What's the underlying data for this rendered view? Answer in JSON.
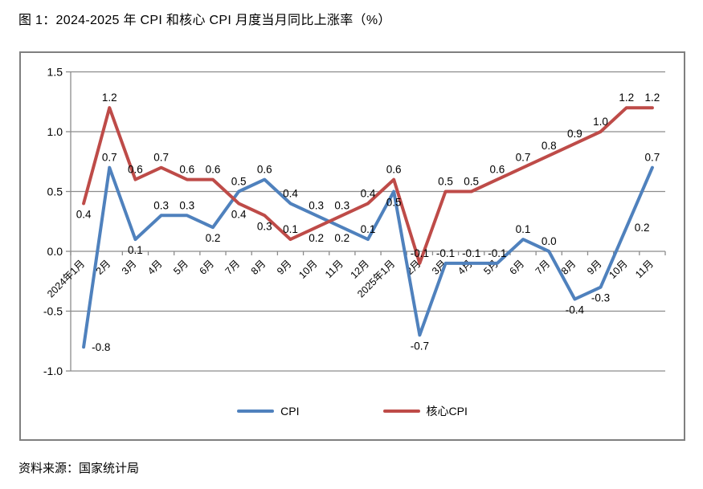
{
  "title": "图 1：2024-2025 年 CPI 和核心 CPI 月度当月同比上涨率（%）",
  "source": "资料来源：国家统计局",
  "legend": {
    "cpi": "CPI",
    "core_cpi": "核心CPI"
  },
  "chart_data": {
    "type": "line",
    "title": "图 1：2024-2025 年 CPI 和核心 CPI 月度当月同比上涨率（%）",
    "xlabel": "",
    "ylabel": "",
    "ylim": [
      -1.0,
      1.5
    ],
    "ytick_step": 0.5,
    "yticks": [
      "1.5",
      "1.0",
      "0.5",
      "0.0",
      "-0.5",
      "-1.0"
    ],
    "grid": true,
    "legend_position": "bottom-inside",
    "value_label_decimals": 1,
    "categories": [
      "2024年1月",
      "2月",
      "3月",
      "4月",
      "5月",
      "6月",
      "7月",
      "8月",
      "9月",
      "10月",
      "11月",
      "12月",
      "2025年1月",
      "2月",
      "3月",
      "4月",
      "5月",
      "6月",
      "7月",
      "8月",
      "9月",
      "10月",
      "11月"
    ],
    "series": [
      {
        "name": "CPI",
        "color": "#4F81BD",
        "values": [
          -0.8,
          0.7,
          0.1,
          0.3,
          0.3,
          0.2,
          0.5,
          0.6,
          0.4,
          0.3,
          0.2,
          0.1,
          0.5,
          -0.7,
          -0.1,
          -0.1,
          -0.1,
          0.1,
          0.0,
          -0.4,
          -0.3,
          0.2,
          0.7
        ],
        "label_positions": [
          "right",
          "above",
          "below",
          "above",
          "above",
          "below",
          "above",
          "above",
          "above",
          "above",
          "below",
          "above",
          "below",
          "below",
          "above",
          "above",
          "above",
          "above",
          "above",
          "below",
          "below",
          "right",
          "above"
        ]
      },
      {
        "name": "核心CPI",
        "color": "#BE4B48",
        "values": [
          0.4,
          1.2,
          0.6,
          0.7,
          0.6,
          0.6,
          0.4,
          0.3,
          0.1,
          0.2,
          0.3,
          0.4,
          0.6,
          -0.1,
          0.5,
          0.5,
          0.6,
          0.7,
          0.8,
          0.9,
          1.0,
          1.2,
          1.2
        ],
        "label_positions": [
          "below",
          "above",
          "above",
          "above",
          "above",
          "above",
          "below",
          "below",
          "above",
          "below",
          "above",
          "above",
          "above",
          "above",
          "above",
          "above",
          "above",
          "above",
          "above",
          "above",
          "above",
          "above",
          "above"
        ]
      }
    ]
  }
}
